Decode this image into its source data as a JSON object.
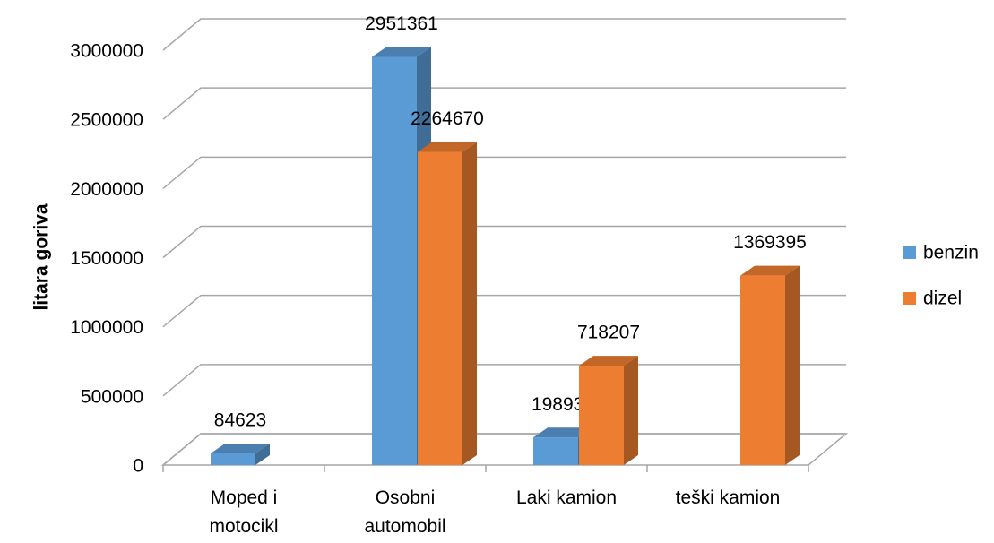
{
  "chart_data": {
    "type": "bar3d",
    "ylabel": "litara goriva",
    "categories": [
      [
        "Moped i",
        "motocikl"
      ],
      [
        "Osobni",
        "automobil"
      ],
      [
        "Laki kamion"
      ],
      [
        "teški kamion"
      ]
    ],
    "series": [
      {
        "name": "benzin",
        "color": "#5b9bd5",
        "values": [
          84623,
          2951361,
          198933,
          null
        ]
      },
      {
        "name": "dizel",
        "color": "#ed7d31",
        "values": [
          null,
          2264670,
          718207,
          1369395
        ]
      }
    ],
    "ylim": [
      0,
      3000000
    ],
    "yticks": [
      0,
      500000,
      1000000,
      1500000,
      2000000,
      2500000,
      3000000
    ],
    "grid": true,
    "legend": "right"
  }
}
